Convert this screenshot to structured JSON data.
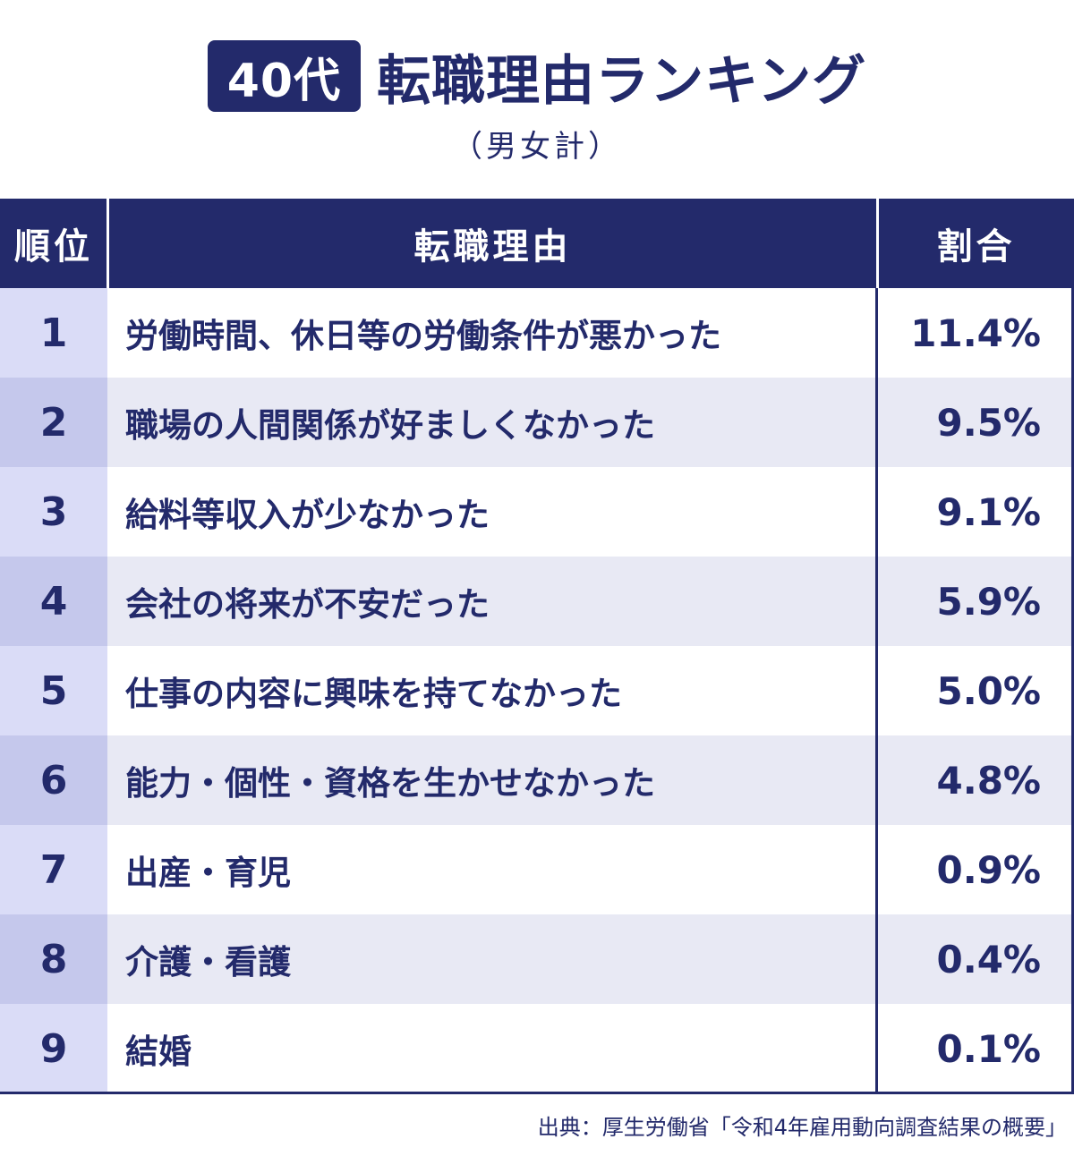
{
  "title": {
    "badge": "40代",
    "text": "転職理由ランキング",
    "subtitle": "（男女計）"
  },
  "headers": {
    "rank": "順位",
    "reason": "転職理由",
    "share": "割合"
  },
  "colors": {
    "navy": "#232a6b",
    "rank_light": "#dadcf7",
    "rank_dark": "#c5c8ec",
    "row_white": "#ffffff",
    "row_gray": "#e8e9f4"
  },
  "chart_data": {
    "type": "table",
    "columns": [
      "順位",
      "転職理由",
      "割合"
    ],
    "rows": [
      {
        "rank": "1",
        "reason": "労働時間、休日等の労働条件が悪かった",
        "share_label": "11.4%",
        "share": 11.4
      },
      {
        "rank": "2",
        "reason": "職場の人間関係が好ましくなかった",
        "share_label": "9.5%",
        "share": 9.5
      },
      {
        "rank": "3",
        "reason": "給料等収入が少なかった",
        "share_label": "9.1%",
        "share": 9.1
      },
      {
        "rank": "4",
        "reason": "会社の将来が不安だった",
        "share_label": "5.9%",
        "share": 5.9
      },
      {
        "rank": "5",
        "reason": "仕事の内容に興味を持てなかった",
        "share_label": "5.0%",
        "share": 5.0
      },
      {
        "rank": "6",
        "reason": "能力・個性・資格を生かせなかった",
        "share_label": "4.8%",
        "share": 4.8
      },
      {
        "rank": "7",
        "reason": "出産・育児",
        "share_label": "0.9%",
        "share": 0.9
      },
      {
        "rank": "8",
        "reason": "介護・看護",
        "share_label": "0.4%",
        "share": 0.4
      },
      {
        "rank": "9",
        "reason": "結婚",
        "share_label": "0.1%",
        "share": 0.1
      }
    ]
  },
  "source": "出典：厚生労働省「令和4年雇用動向調査結果の概要」"
}
